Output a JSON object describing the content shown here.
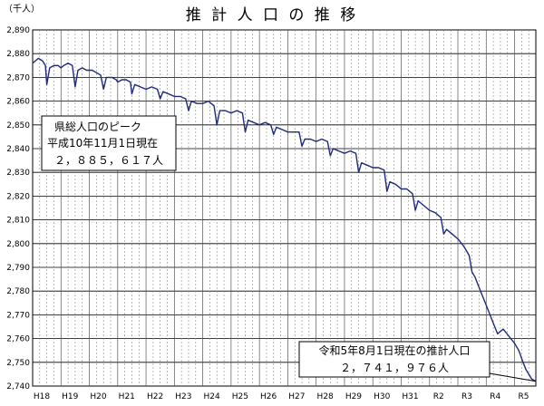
{
  "chart_data": {
    "type": "line",
    "title": "推 計 人 口 の 推 移",
    "unit_label": "（千人）",
    "xlabel": "",
    "ylabel": "",
    "ylim": [
      2740,
      2890
    ],
    "y_ticks": [
      "2,740",
      "2,750",
      "2,760",
      "2,770",
      "2,780",
      "2,790",
      "2,800",
      "2,810",
      "2,820",
      "2,830",
      "2,840",
      "2,850",
      "2,860",
      "2,870",
      "2,880",
      "2,890"
    ],
    "x_ticks": [
      "H18",
      "H19",
      "H20",
      "H21",
      "H22",
      "H23",
      "H24",
      "H25",
      "H26",
      "H27",
      "H28",
      "H29",
      "H30",
      "H31",
      "R2",
      "R3",
      "R4",
      "R5"
    ],
    "x_range": [
      2006.0,
      2023.75
    ],
    "grid": true,
    "series": [
      {
        "name": "",
        "color": "#1f2a7a",
        "points": [
          [
            2006.0,
            2876
          ],
          [
            2006.1,
            2877
          ],
          [
            2006.2,
            2878
          ],
          [
            2006.35,
            2877
          ],
          [
            2006.45,
            2875
          ],
          [
            2006.5,
            2867
          ],
          [
            2006.6,
            2874
          ],
          [
            2006.75,
            2875
          ],
          [
            2006.9,
            2875
          ],
          [
            2007.0,
            2874
          ],
          [
            2007.1,
            2875
          ],
          [
            2007.25,
            2876
          ],
          [
            2007.4,
            2875
          ],
          [
            2007.5,
            2866
          ],
          [
            2007.6,
            2873
          ],
          [
            2007.75,
            2874
          ],
          [
            2007.9,
            2873
          ],
          [
            2008.0,
            2873
          ],
          [
            2008.1,
            2873
          ],
          [
            2008.25,
            2872
          ],
          [
            2008.4,
            2871
          ],
          [
            2008.5,
            2865
          ],
          [
            2008.6,
            2870
          ],
          [
            2008.8,
            2870
          ],
          [
            2008.95,
            2869
          ],
          [
            2009.0,
            2868
          ],
          [
            2009.15,
            2869
          ],
          [
            2009.3,
            2869
          ],
          [
            2009.45,
            2868
          ],
          [
            2009.5,
            2863
          ],
          [
            2009.6,
            2867
          ],
          [
            2009.8,
            2866
          ],
          [
            2010.0,
            2865
          ],
          [
            2010.2,
            2866
          ],
          [
            2010.4,
            2865
          ],
          [
            2010.5,
            2861
          ],
          [
            2010.6,
            2864
          ],
          [
            2010.8,
            2863
          ],
          [
            2011.0,
            2862
          ],
          [
            2011.2,
            2862
          ],
          [
            2011.4,
            2861
          ],
          [
            2011.5,
            2856
          ],
          [
            2011.6,
            2860
          ],
          [
            2011.8,
            2859
          ],
          [
            2012.0,
            2859
          ],
          [
            2012.2,
            2860
          ],
          [
            2012.4,
            2858
          ],
          [
            2012.5,
            2850
          ],
          [
            2012.6,
            2856
          ],
          [
            2012.8,
            2856
          ],
          [
            2013.0,
            2855
          ],
          [
            2013.2,
            2856
          ],
          [
            2013.4,
            2855
          ],
          [
            2013.5,
            2847
          ],
          [
            2013.6,
            2852
          ],
          [
            2013.8,
            2851
          ],
          [
            2014.0,
            2850
          ],
          [
            2014.2,
            2851
          ],
          [
            2014.4,
            2850
          ],
          [
            2014.5,
            2846
          ],
          [
            2014.6,
            2849
          ],
          [
            2014.8,
            2848
          ],
          [
            2015.0,
            2847
          ],
          [
            2015.2,
            2847
          ],
          [
            2015.4,
            2847
          ],
          [
            2015.5,
            2841
          ],
          [
            2015.6,
            2844
          ],
          [
            2015.8,
            2844
          ],
          [
            2016.0,
            2843
          ],
          [
            2016.2,
            2844
          ],
          [
            2016.4,
            2843
          ],
          [
            2016.5,
            2837
          ],
          [
            2016.6,
            2840
          ],
          [
            2016.8,
            2839
          ],
          [
            2017.0,
            2838
          ],
          [
            2017.2,
            2839
          ],
          [
            2017.4,
            2838
          ],
          [
            2017.5,
            2830
          ],
          [
            2017.6,
            2834
          ],
          [
            2017.8,
            2833
          ],
          [
            2018.0,
            2832
          ],
          [
            2018.2,
            2832
          ],
          [
            2018.4,
            2831
          ],
          [
            2018.5,
            2822
          ],
          [
            2018.6,
            2826
          ],
          [
            2018.8,
            2825
          ],
          [
            2019.0,
            2823
          ],
          [
            2019.2,
            2823
          ],
          [
            2019.4,
            2821
          ],
          [
            2019.5,
            2814
          ],
          [
            2019.6,
            2818
          ],
          [
            2019.8,
            2816
          ],
          [
            2020.0,
            2814
          ],
          [
            2020.2,
            2813
          ],
          [
            2020.4,
            2811
          ],
          [
            2020.5,
            2804
          ],
          [
            2020.6,
            2806
          ],
          [
            2020.8,
            2804
          ],
          [
            2021.0,
            2802
          ],
          [
            2021.2,
            2799
          ],
          [
            2021.4,
            2795
          ],
          [
            2021.5,
            2788
          ],
          [
            2021.6,
            2786
          ],
          [
            2021.8,
            2780
          ],
          [
            2022.0,
            2774
          ],
          [
            2022.2,
            2768
          ],
          [
            2022.4,
            2762
          ],
          [
            2022.5,
            2763
          ],
          [
            2022.6,
            2764
          ],
          [
            2022.8,
            2761
          ],
          [
            2023.0,
            2758
          ],
          [
            2023.15,
            2755
          ],
          [
            2023.3,
            2750
          ],
          [
            2023.4,
            2747
          ],
          [
            2023.5,
            2745
          ],
          [
            2023.6,
            2743
          ],
          [
            2023.75,
            2742
          ]
        ]
      }
    ],
    "annotations": [
      {
        "lines": [
          "県総人口のピーク",
          "平成10年11月1日現在",
          "２，８８５，６１７人"
        ]
      },
      {
        "lines": [
          "令和5年8月1日現在の推計人口",
          "２，７４１，９７６人"
        ]
      }
    ]
  }
}
